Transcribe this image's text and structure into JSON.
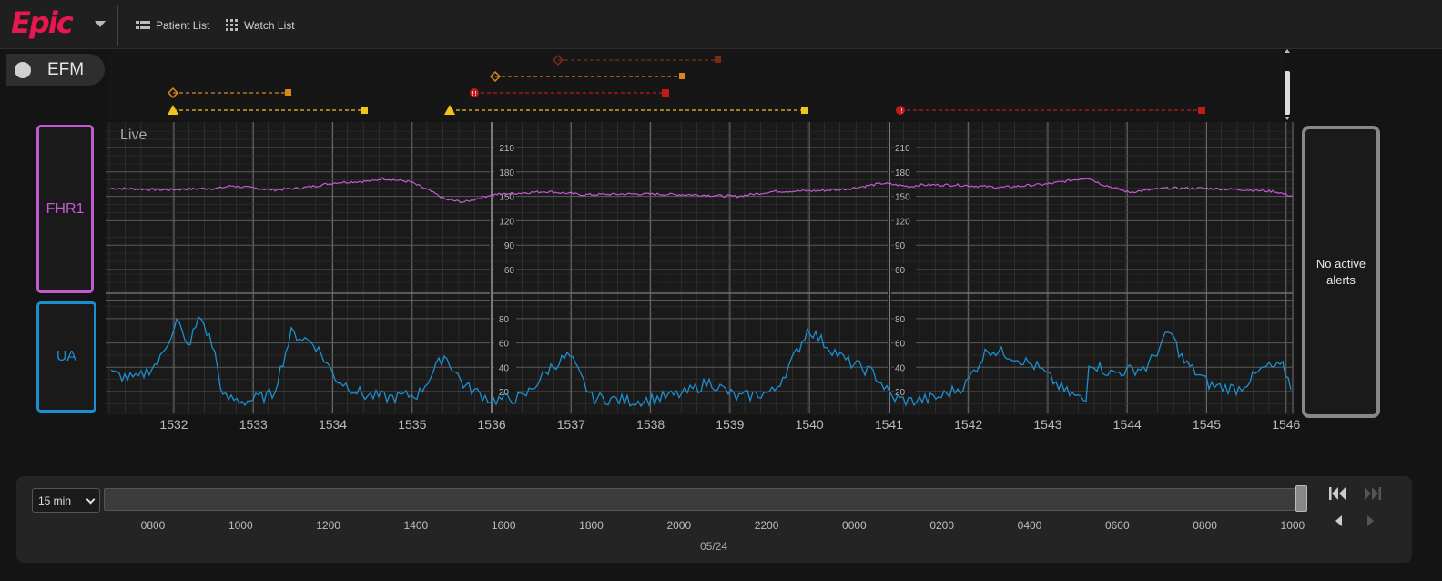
{
  "header": {
    "logo_text": "Epic",
    "nav": [
      {
        "label": "Patient List",
        "icon": "patient-list-icon"
      },
      {
        "label": "Watch List",
        "icon": "grid-icon"
      }
    ]
  },
  "efm_tab": {
    "label": "EFM"
  },
  "strip": {
    "live_label": "Live",
    "fhr_label": "FHR1",
    "ua_label": "UA",
    "fhr_ticks": [
      "210",
      "180",
      "150",
      "120",
      "90",
      "60"
    ],
    "ua_ticks": [
      "80",
      "60",
      "40",
      "20"
    ],
    "x_ticks": [
      "1532",
      "1533",
      "1534",
      "1535",
      "1536",
      "1537",
      "1538",
      "1539",
      "1540",
      "1541",
      "1542",
      "1543",
      "1544",
      "1545",
      "1546"
    ]
  },
  "alerts": {
    "text": "No active alerts"
  },
  "timeline": {
    "range_value": "15 min",
    "ticks": [
      "0800",
      "1000",
      "1200",
      "1400",
      "1600",
      "1800",
      "2000",
      "2200",
      "0000",
      "0200",
      "0400",
      "0600",
      "0800",
      "1000"
    ],
    "date": "05/24"
  },
  "colors": {
    "fhr": "#c25bd0",
    "ua": "#1b8fd0",
    "accent": "#e8174f",
    "event_yellow": "#f0c419",
    "event_orange": "#d9861a",
    "event_red": "#c0191e",
    "event_darkred": "#8a2a14"
  }
}
